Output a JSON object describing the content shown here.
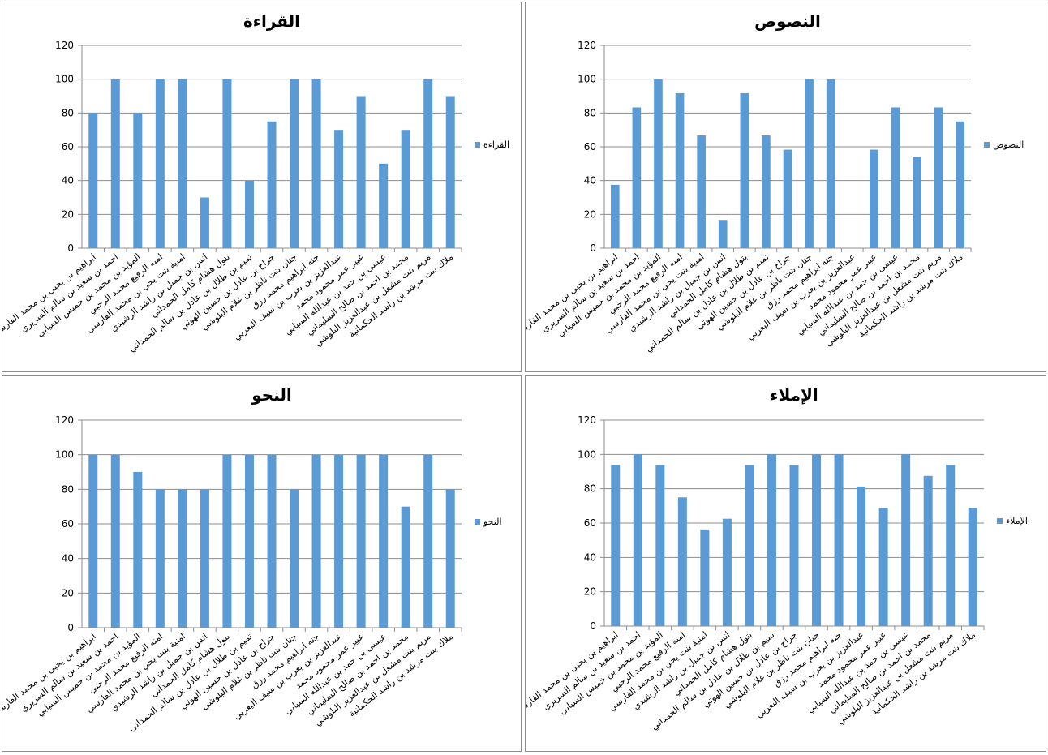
{
  "chart_data": [
    {
      "type": "bar",
      "title": "القراءة",
      "legend": "القراءة",
      "legend_position": "right",
      "ylim": [
        0,
        120
      ],
      "yticks": [
        0,
        20,
        40,
        60,
        80,
        100,
        120
      ],
      "grid": true,
      "color": "#5b9bd5",
      "categories": [
        "ابراهيم بن يحيى بن محمد الفارسي",
        "احمد بن سعيد بن سالم السريري",
        "المؤيد بن محمد بن خميس السيابي",
        "امنه الرفيع محمد الرحبي",
        "امنية بنت يحي بن محمد الفارسي",
        "انس بن جميل بن راشد الرشيدي",
        "بتول هشام كامل الحمداني",
        "تميم بن طلال بن عادل بن سالم الحمداني",
        "جراح بن عادل بن حسين الهوتي",
        "جنان بنت ناظر بن غلام البلوشي",
        "جنه ابراهيم محمد رزق",
        "عبدالعزيز بن يعرب بن سيف اليعربي",
        "عبير عمر محمود محمد",
        "عيسى بن حمد بن عبدالله السيابي",
        "محمد بن احمد بن صالح السليماني",
        "مريم بنت مشعل بن عبدالعزيز البلوشي",
        "ملاك بنت مرشد بن راشد الحكمانية"
      ],
      "values": [
        80,
        100,
        80,
        100,
        100,
        30,
        100,
        40,
        75,
        100,
        100,
        70,
        90,
        50,
        70,
        100,
        90
      ]
    },
    {
      "type": "bar",
      "title": "النصوص",
      "legend": "النصوص",
      "legend_position": "right",
      "ylim": [
        0,
        120
      ],
      "yticks": [
        0,
        20,
        40,
        60,
        80,
        100,
        120
      ],
      "grid": true,
      "color": "#5b9bd5",
      "categories": [
        "ابراهيم بن يحيى بن محمد الفارسي",
        "احمد بن سعيد بن سالم السريري",
        "المؤيد بن محمد بن خميس السيابي",
        "امنه الرفيع محمد الرحبي",
        "امنية بنت يحي بن محمد الفارسي",
        "انس بن جميل بن راشد الرشيدي",
        "بتول هشام كامل الحمداني",
        "تميم بن طلال بن عادل بن سالم الحمداني",
        "جراح بن عادل بن حسين الهوتي",
        "جنان بنت ناظر بن غلام البلوشي",
        "جنه ابراهيم محمد رزق",
        "عبدالعزيز بن يعرب بن سيف اليعربي",
        "عبير عمر محمود محمد",
        "عيسى بن حمد بن عبدالله السيابي",
        "محمد بن احمد بن صالح السليماني",
        "مريم بنت مشعل بن عبدالعزيز البلوشي",
        "ملاك بنت مرشد بن راشد الحكمانية"
      ],
      "values": [
        37.5,
        83.3,
        100,
        91.7,
        66.7,
        16.7,
        91.7,
        66.7,
        58.3,
        100,
        100,
        0,
        58.3,
        83.3,
        54.2,
        83.3,
        75
      ]
    },
    {
      "type": "bar",
      "title": "النحو",
      "legend": "النحو",
      "legend_position": "right",
      "ylim": [
        0,
        120
      ],
      "yticks": [
        0,
        20,
        40,
        60,
        80,
        100,
        120
      ],
      "grid": true,
      "color": "#5b9bd5",
      "categories": [
        "ابراهيم بن يحيى بن محمد الفارسي",
        "احمد بن سعيد بن سالم السريري",
        "المؤيد بن محمد بن خميس السيابي",
        "امنه الرفيع محمد الرحبي",
        "امنية بنت يحي بن محمد الفارسي",
        "انس بن جميل بن راشد الرشيدي",
        "بتول هشام كامل الحمداني",
        "تميم بن طلال بن عادل بن سالم الحمداني",
        "جراح بن عادل بن حسين الهوتي",
        "جنان بنت ناظر بن غلام البلوشي",
        "جنه ابراهيم محمد رزق",
        "عبدالعزيز بن يعرب بن سيف اليعربي",
        "عبير عمر محمود محمد",
        "عيسى بن حمد بن عبدالله السيابي",
        "محمد بن احمد بن صالح السليماني",
        "مريم بنت مشعل بن عبدالعزيز البلوشي",
        "ملاك بنت مرشد بن راشد الحكمانية"
      ],
      "values": [
        100,
        100,
        90,
        80,
        80,
        80,
        100,
        100,
        100,
        80,
        100,
        100,
        100,
        100,
        70,
        100,
        80
      ]
    },
    {
      "type": "bar",
      "title": "الإملاء",
      "legend": "الإملاء",
      "legend_position": "right",
      "ylim": [
        0,
        120
      ],
      "yticks": [
        0,
        20,
        40,
        60,
        80,
        100,
        120
      ],
      "grid": true,
      "color": "#5b9bd5",
      "categories": [
        "ابراهيم بن يحيى بن محمد الفارسي",
        "احمد بن سعيد بن سالم السريري",
        "المؤيد بن محمد بن خميس السيابي",
        "امنه الرفيع محمد الرحبي",
        "امنية بنت يحي بن محمد الفارسي",
        "انس بن جميل بن راشد الرشيدي",
        "بتول هشام كامل الحمداني",
        "تميم بن طلال بن عادل بن سالم الحمداني",
        "جراح بن عادل بن حسين الهوتي",
        "جنان بنت ناظر بن غلام البلوشي",
        "جنه ابراهيم محمد رزق",
        "عبدالعزيز بن يعرب بن سيف اليعربي",
        "عبير عمر محمود محمد",
        "عيسى بن حمد بن عبدالله السيابي",
        "محمد بن احمد بن صالح السليماني",
        "مريم بنت مشعل بن عبدالعزيز البلوشي",
        "ملاك بنت مرشد بن راشد الحكمانية"
      ],
      "values": [
        93.8,
        100,
        93.8,
        75,
        56.3,
        62.5,
        93.8,
        100,
        93.8,
        100,
        100,
        81.3,
        68.8,
        100,
        87.5,
        93.8,
        68.8
      ]
    }
  ]
}
